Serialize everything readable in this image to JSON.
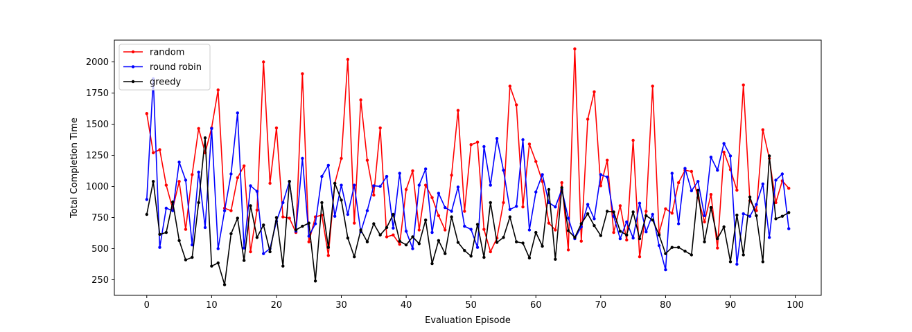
{
  "chart_data": {
    "type": "line",
    "title": "",
    "xlabel": "Evaluation Episode",
    "ylabel": "Total Completion Time",
    "xlim": [
      -5,
      104
    ],
    "ylim": [
      125,
      2175
    ],
    "xticks": [
      0,
      10,
      20,
      30,
      40,
      50,
      60,
      70,
      80,
      90,
      100
    ],
    "yticks": [
      250,
      500,
      750,
      1000,
      1250,
      1500,
      1750,
      2000
    ],
    "grid": false,
    "legend_position": "upper-left",
    "x": [
      0,
      1,
      2,
      3,
      4,
      5,
      6,
      7,
      8,
      9,
      10,
      11,
      12,
      13,
      14,
      15,
      16,
      17,
      18,
      19,
      20,
      21,
      22,
      23,
      24,
      25,
      26,
      27,
      28,
      29,
      30,
      31,
      32,
      33,
      34,
      35,
      36,
      37,
      38,
      39,
      40,
      41,
      42,
      43,
      44,
      45,
      46,
      47,
      48,
      49,
      50,
      51,
      52,
      53,
      54,
      55,
      56,
      57,
      58,
      59,
      60,
      61,
      62,
      63,
      64,
      65,
      66,
      67,
      68,
      69,
      70,
      71,
      72,
      73,
      74,
      75,
      76,
      77,
      78,
      79,
      80,
      81,
      82,
      83,
      84,
      85,
      86,
      87,
      88,
      89,
      90,
      91,
      92,
      93,
      94,
      95,
      96,
      97,
      98,
      99
    ],
    "series": [
      {
        "name": "random",
        "color": "#ff0000",
        "values": [
          1585,
          1270,
          1295,
          1010,
          820,
          1040,
          655,
          1095,
          1465,
          1270,
          1470,
          1775,
          825,
          805,
          1070,
          1165,
          475,
          810,
          2000,
          1025,
          1470,
          755,
          745,
          630,
          1905,
          555,
          755,
          770,
          445,
          1025,
          1225,
          2020,
          705,
          1695,
          1210,
          930,
          1470,
          595,
          610,
          535,
          975,
          1125,
          650,
          1010,
          910,
          765,
          650,
          1090,
          1610,
          800,
          1335,
          1355,
          655,
          475,
          585,
          870,
          1805,
          1655,
          835,
          1340,
          1200,
          1040,
          705,
          650,
          1030,
          490,
          2105,
          560,
          1540,
          1760,
          1005,
          1210,
          630,
          845,
          570,
          1370,
          435,
          800,
          1805,
          625,
          820,
          785,
          1030,
          1130,
          1120,
          910,
          715,
          935,
          505,
          1275,
          1135,
          970,
          1815,
          885,
          805,
          1455,
          1225,
          870,
          1045,
          985
        ]
      },
      {
        "name": "round robin",
        "color": "#0000ff",
        "values": [
          895,
          1865,
          510,
          825,
          805,
          1195,
          1050,
          530,
          1115,
          670,
          1465,
          500,
          805,
          1100,
          1590,
          505,
          1005,
          960,
          460,
          500,
          720,
          870,
          1040,
          640,
          1225,
          600,
          700,
          1080,
          1170,
          760,
          1010,
          775,
          1010,
          635,
          805,
          1005,
          1000,
          1080,
          665,
          1105,
          640,
          500,
          1010,
          1140,
          630,
          945,
          830,
          800,
          995,
          680,
          655,
          510,
          1320,
          1010,
          1385,
          1130,
          815,
          840,
          1375,
          650,
          955,
          1095,
          870,
          835,
          975,
          745,
          580,
          675,
          855,
          740,
          1095,
          1075,
          760,
          580,
          715,
          585,
          865,
          635,
          775,
          525,
          330,
          1105,
          700,
          1145,
          965,
          1040,
          765,
          1235,
          1130,
          1345,
          1245,
          375,
          780,
          760,
          855,
          1020,
          590,
          1050,
          1100,
          660
        ]
      },
      {
        "name": "greedy",
        "color": "#000000",
        "values": [
          775,
          1040,
          615,
          630,
          875,
          565,
          410,
          430,
          870,
          1390,
          360,
          385,
          210,
          620,
          745,
          405,
          845,
          590,
          690,
          475,
          750,
          360,
          1040,
          650,
          680,
          705,
          240,
          870,
          510,
          1025,
          890,
          585,
          435,
          650,
          555,
          700,
          610,
          670,
          775,
          560,
          530,
          595,
          540,
          730,
          380,
          565,
          460,
          755,
          550,
          485,
          440,
          695,
          430,
          870,
          550,
          590,
          755,
          555,
          545,
          425,
          630,
          520,
          975,
          415,
          990,
          645,
          590,
          700,
          780,
          685,
          605,
          800,
          795,
          640,
          610,
          795,
          580,
          765,
          730,
          610,
          460,
          510,
          510,
          480,
          450,
          970,
          555,
          830,
          580,
          675,
          395,
          770,
          450,
          915,
          765,
          395,
          1245,
          740,
          760,
          790
        ]
      }
    ]
  }
}
